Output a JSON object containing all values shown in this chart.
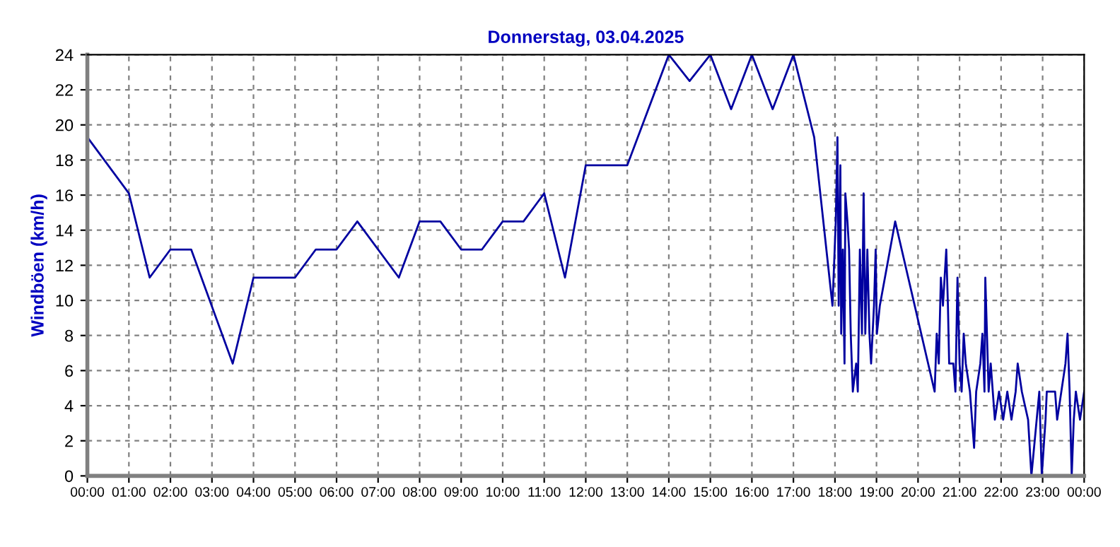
{
  "chart_data": {
    "type": "line",
    "title": "Donnerstag, 03.04.2025",
    "ylabel": "Windböen (km/h)",
    "xlim": [
      0,
      24
    ],
    "ylim": [
      0,
      24
    ],
    "yticks": [
      0,
      2,
      4,
      6,
      8,
      10,
      12,
      14,
      16,
      18,
      20,
      22,
      24
    ],
    "xticks": [
      {
        "value": 0,
        "label": "00:00"
      },
      {
        "value": 1,
        "label": "01:00"
      },
      {
        "value": 2,
        "label": "02:00"
      },
      {
        "value": 3,
        "label": "03:00"
      },
      {
        "value": 4,
        "label": "04:00"
      },
      {
        "value": 5,
        "label": "05:00"
      },
      {
        "value": 6,
        "label": "06:00"
      },
      {
        "value": 7,
        "label": "07:00"
      },
      {
        "value": 8,
        "label": "08:00"
      },
      {
        "value": 9,
        "label": "09:00"
      },
      {
        "value": 10,
        "label": "10:00"
      },
      {
        "value": 11,
        "label": "11:00"
      },
      {
        "value": 12,
        "label": "12:00"
      },
      {
        "value": 13,
        "label": "13:00"
      },
      {
        "value": 14,
        "label": "14:00"
      },
      {
        "value": 15,
        "label": "15:00"
      },
      {
        "value": 16,
        "label": "16:00"
      },
      {
        "value": 17,
        "label": "17:00"
      },
      {
        "value": 18,
        "label": "18:00"
      },
      {
        "value": 19,
        "label": "19:00"
      },
      {
        "value": 20,
        "label": "20:00"
      },
      {
        "value": 21,
        "label": "21:00"
      },
      {
        "value": 22,
        "label": "22:00"
      },
      {
        "value": 23,
        "label": "23:00"
      },
      {
        "value": 24,
        "label": "00:00"
      }
    ],
    "grid": true,
    "marker": "none",
    "line_style": "solid",
    "series": [
      {
        "color": "#0000a0",
        "x": [
          0,
          1,
          1.5,
          2,
          2.5,
          3.5,
          4,
          5,
          5.5,
          6,
          6.5,
          7.5,
          8,
          8.5,
          9,
          9.5,
          10,
          10.5,
          11,
          11.5,
          12,
          13,
          14,
          14.5,
          15,
          15.5,
          16,
          16.5,
          17,
          17.5,
          17.94,
          18.02,
          18.06,
          18.09,
          18.13,
          18.15,
          18.19,
          18.23,
          18.25,
          18.3,
          18.34,
          18.38,
          18.43,
          18.51,
          18.55,
          18.6,
          18.65,
          18.69,
          18.73,
          18.78,
          18.83,
          18.87,
          18.94,
          18.98,
          19.01,
          19.08,
          19.45,
          20.4,
          20.45,
          20.5,
          20.55,
          20.6,
          20.68,
          20.72,
          20.75,
          20.85,
          20.9,
          20.95,
          21.0,
          21.05,
          21.1,
          21.15,
          21.25,
          21.3,
          21.35,
          21.4,
          21.5,
          21.55,
          21.6,
          21.62,
          21.7,
          21.75,
          21.85,
          21.95,
          22.05,
          22.15,
          22.25,
          22.35,
          22.4,
          22.5,
          22.65,
          22.73,
          22.92,
          22.98,
          23.07,
          23.1,
          23.3,
          23.35,
          23.45,
          23.55,
          23.6,
          23.65,
          23.7,
          23.75,
          23.8,
          23.9,
          24.0
        ],
        "values": [
          19.3,
          16.1,
          11.3,
          12.9,
          12.9,
          6.4,
          11.3,
          11.3,
          12.9,
          12.9,
          14.5,
          11.3,
          14.5,
          14.5,
          12.9,
          12.9,
          14.5,
          14.5,
          16.1,
          11.3,
          17.7,
          17.7,
          24,
          22.5,
          24,
          20.9,
          24,
          20.9,
          24,
          19.3,
          9.7,
          14.5,
          19.3,
          9.7,
          17.7,
          8.1,
          12.9,
          6.4,
          16.1,
          14.5,
          12.9,
          8.1,
          4.8,
          6.4,
          4.8,
          12.9,
          8.1,
          16.1,
          8.1,
          12.9,
          8.1,
          6.4,
          9.7,
          12.9,
          8.1,
          9.7,
          14.5,
          4.8,
          8.1,
          6.4,
          11.3,
          9.7,
          12.9,
          9.7,
          6.4,
          6.4,
          4.8,
          11.3,
          6.4,
          4.8,
          8.1,
          6.4,
          4.8,
          3.2,
          1.6,
          4.8,
          6.4,
          8.1,
          4.8,
          11.3,
          4.8,
          6.4,
          3.2,
          4.8,
          3.2,
          4.8,
          3.2,
          4.8,
          6.4,
          4.8,
          3.2,
          0,
          4.8,
          0,
          3.2,
          4.8,
          4.8,
          3.2,
          4.8,
          6.4,
          8.1,
          4.8,
          0,
          3.2,
          4.8,
          3.2,
          4.8
        ]
      }
    ]
  }
}
